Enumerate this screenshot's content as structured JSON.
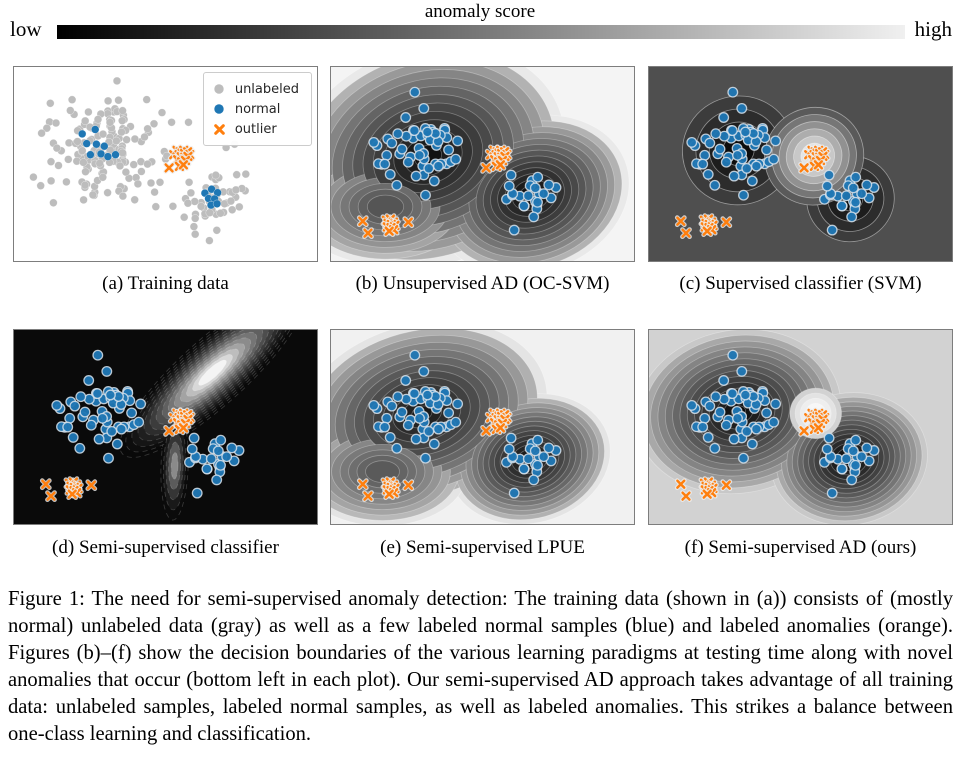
{
  "colorbar": {
    "title": "anomaly score",
    "low_label": "low",
    "high_label": "high",
    "gradient_from": "#000000",
    "gradient_mid": "#787878",
    "gradient_to": "#f0f0f0"
  },
  "legend": {
    "items": [
      {
        "label": "unlabeled",
        "marker": "circle",
        "color": "#bdbdbd"
      },
      {
        "label": "normal",
        "marker": "circle",
        "color": "#1f77b4"
      },
      {
        "label": "outlier",
        "marker": "x",
        "color": "#ff7f0e"
      }
    ]
  },
  "caption": {
    "text": "Figure 1: The need for semi-supervised anomaly detection: The training data (shown in (a)) consists of (mostly normal) unlabeled data (gray) as well as a few labeled normal samples (blue) and labeled anomalies (orange). Figures (b)–(f) show the decision boundaries of the various learning paradigms at testing time along with novel anomalies that occur (bottom left in each plot). Our semi-supervised AD approach takes advantage of all training data: unlabeled samples, labeled normal samples, as well as labeled anomalies. This strikes a balance between one-class learning and classification."
  },
  "chart_data": {
    "type": "scatter",
    "title": "",
    "xlabel": "",
    "ylabel": "",
    "grid": false,
    "marker_colors": {
      "unlabeled": "#bdbdbd",
      "normal": "#1f77b4",
      "outlier": "#ff7f0e"
    },
    "panels": [
      {
        "id": "a",
        "caption": "(a) Training data",
        "field": null,
        "legend": true,
        "show": [
          "unlabeled",
          "normal_a",
          "outlier_train"
        ]
      },
      {
        "id": "b",
        "caption": "(b) Unsupervised AD (OC-SVM)",
        "field": "b",
        "legend": false,
        "show": [
          "normal_bf",
          "outlier_train",
          "novel_anomalies"
        ]
      },
      {
        "id": "c",
        "caption": "(c) Supervised classifier (SVM)",
        "field": "c",
        "legend": false,
        "show": [
          "normal_bf",
          "outlier_train",
          "novel_anomalies"
        ]
      },
      {
        "id": "d",
        "caption": "(d) Semi-supervised classifier",
        "field": "d",
        "legend": false,
        "show": [
          "normal_bf",
          "outlier_train",
          "novel_anomalies"
        ]
      },
      {
        "id": "e",
        "caption": "(e) Semi-supervised LPUE",
        "field": "e",
        "legend": false,
        "show": [
          "normal_bf",
          "outlier_train",
          "novel_anomalies"
        ]
      },
      {
        "id": "f",
        "caption": "(f) Semi-supervised AD (ours)",
        "field": "f",
        "legend": false,
        "show": [
          "normal_bf",
          "outlier_train",
          "novel_anomalies"
        ]
      }
    ],
    "points": {
      "unlabeled_clusters": [
        {
          "cx": 0.295,
          "cy": 0.42,
          "sx": 0.085,
          "sy": 0.125,
          "n": 150,
          "seed": 7
        },
        {
          "cx": 0.665,
          "cy": 0.69,
          "sx": 0.052,
          "sy": 0.068,
          "n": 46,
          "seed": 13
        }
      ],
      "unlabeled_extra": [
        [
          0.52,
          0.285
        ],
        [
          0.576,
          0.285
        ],
        [
          0.7,
          0.415
        ],
        [
          0.728,
          0.398
        ],
        [
          0.735,
          0.555
        ],
        [
          0.765,
          0.552
        ],
        [
          0.645,
          0.895
        ],
        [
          0.598,
          0.862
        ],
        [
          0.468,
          0.72
        ],
        [
          0.452,
          0.598
        ],
        [
          0.13,
          0.7
        ],
        [
          0.088,
          0.612
        ]
      ],
      "normal_a": [
        [
          0.225,
          0.345
        ],
        [
          0.268,
          0.322
        ],
        [
          0.24,
          0.395
        ],
        [
          0.272,
          0.398
        ],
        [
          0.298,
          0.408
        ],
        [
          0.252,
          0.452
        ],
        [
          0.287,
          0.448
        ],
        [
          0.31,
          0.462
        ],
        [
          0.335,
          0.452
        ],
        [
          0.63,
          0.65
        ],
        [
          0.652,
          0.63
        ],
        [
          0.672,
          0.648
        ],
        [
          0.642,
          0.678
        ],
        [
          0.662,
          0.68
        ],
        [
          0.65,
          0.712
        ],
        [
          0.67,
          0.705
        ]
      ],
      "normal_clusters_bf": [
        {
          "cx": 0.3,
          "cy": 0.425,
          "sx": 0.075,
          "sy": 0.105,
          "n": 55,
          "seed": 21
        },
        {
          "cx": 0.66,
          "cy": 0.675,
          "sx": 0.05,
          "sy": 0.062,
          "n": 24,
          "seed": 42
        }
      ],
      "outlier_train": [
        [
          0.527,
          0.452
        ],
        [
          0.538,
          0.43
        ],
        [
          0.549,
          0.437
        ],
        [
          0.545,
          0.452
        ],
        [
          0.555,
          0.444
        ],
        [
          0.56,
          0.43
        ],
        [
          0.563,
          0.446
        ],
        [
          0.573,
          0.437
        ],
        [
          0.58,
          0.452
        ],
        [
          0.552,
          0.463
        ],
        [
          0.563,
          0.466
        ],
        [
          0.574,
          0.461
        ],
        [
          0.54,
          0.478
        ],
        [
          0.553,
          0.489
        ],
        [
          0.566,
          0.482
        ],
        [
          0.512,
          0.52
        ],
        [
          0.546,
          0.512
        ],
        [
          0.559,
          0.504
        ]
      ],
      "novel_anomalies": [
        [
          0.105,
          0.795
        ],
        [
          0.122,
          0.856
        ],
        [
          0.255,
          0.8
        ],
        [
          0.183,
          0.79
        ],
        [
          0.196,
          0.784
        ],
        [
          0.206,
          0.8
        ],
        [
          0.188,
          0.806
        ],
        [
          0.199,
          0.812
        ],
        [
          0.211,
          0.816
        ],
        [
          0.186,
          0.824
        ],
        [
          0.198,
          0.828
        ],
        [
          0.207,
          0.838
        ],
        [
          0.192,
          0.846
        ]
      ]
    },
    "fields": {
      "b": {
        "bg": "#f4f4f4",
        "stroke": "rgba(255,255,255,0.30)",
        "dash": null,
        "gamma": 0.55,
        "blobs": [
          {
            "cx": 0.32,
            "cy": 0.46,
            "rx": 0.46,
            "ry": 0.56,
            "rot": -18,
            "levels": 13,
            "outer": "#e9e9e9",
            "inner": "#121212",
            "shrink": 0.9
          },
          {
            "cx": 0.66,
            "cy": 0.66,
            "rx": 0.33,
            "ry": 0.4,
            "rot": -18,
            "levels": 13,
            "outer": "#e9e9e9",
            "inner": "#121212",
            "shrink": 0.88
          },
          {
            "cx": 0.18,
            "cy": 0.72,
            "rx": 0.3,
            "ry": 0.3,
            "rot": 0,
            "levels": 9,
            "outer": "#e9e9e9",
            "inner": "#555555",
            "shrink": 0.8
          }
        ],
        "blobs_top": []
      },
      "c": {
        "bg": "#4f4f4f",
        "stroke": "rgba(255,255,255,0.45)",
        "dash": null,
        "gamma": 1.0,
        "blobs": [
          {
            "cx": 0.295,
            "cy": 0.43,
            "rx": 0.185,
            "ry": 0.28,
            "rot": -15,
            "levels": 4,
            "outer": "#3c3c3c",
            "inner": "#0d0d0d",
            "shrink": 0.72
          },
          {
            "cx": 0.665,
            "cy": 0.68,
            "rx": 0.145,
            "ry": 0.22,
            "rot": -20,
            "levels": 4,
            "outer": "#3c3c3c",
            "inner": "#0d0d0d",
            "shrink": 0.72
          }
        ],
        "blobs_top": [
          {
            "cx": 0.545,
            "cy": 0.46,
            "rx": 0.165,
            "ry": 0.25,
            "rot": -30,
            "levels": 7,
            "outer": "#5a5a5a",
            "inner": "#ffffff",
            "shrink": 0.88
          }
        ]
      },
      "d": {
        "bg": "#0a0a0a",
        "stroke": "rgba(255,255,255,0.20)",
        "dash": "5 4",
        "gamma": 1.6,
        "blobs": [
          {
            "cx": 0.655,
            "cy": 0.22,
            "rx": 0.4,
            "ry": 0.17,
            "rot": -42,
            "levels": 14,
            "outer": "#090909",
            "inner": "#f4f4f4",
            "shrink": 0.85
          },
          {
            "cx": 0.53,
            "cy": 0.7,
            "rx": 0.045,
            "ry": 0.28,
            "rot": 2,
            "levels": 5,
            "outer": "#0b0b0b",
            "inner": "#8a8a8a",
            "shrink": 0.75
          }
        ],
        "blobs_top": []
      },
      "e": {
        "bg": "#f1f1f1",
        "stroke": "rgba(255,255,255,0.30)",
        "dash": null,
        "gamma": 0.55,
        "blobs": [
          {
            "cx": 0.3,
            "cy": 0.43,
            "rx": 0.42,
            "ry": 0.46,
            "rot": -15,
            "levels": 13,
            "outer": "#e4e4e4",
            "inner": "#181818",
            "shrink": 0.92
          },
          {
            "cx": 0.655,
            "cy": 0.665,
            "rx": 0.27,
            "ry": 0.33,
            "rot": -15,
            "levels": 13,
            "outer": "#e4e4e4",
            "inner": "#1c1c1c",
            "shrink": 0.85
          },
          {
            "cx": 0.17,
            "cy": 0.73,
            "rx": 0.28,
            "ry": 0.28,
            "rot": 0,
            "levels": 9,
            "outer": "#e4e4e4",
            "inner": "#5a5a5a",
            "shrink": 0.8
          }
        ],
        "blobs_top": []
      },
      "f": {
        "bg": "#d2d2d2",
        "stroke": "rgba(255,255,255,0.30)",
        "dash": null,
        "gamma": 0.7,
        "blobs": [
          {
            "cx": 0.295,
            "cy": 0.42,
            "rx": 0.34,
            "ry": 0.42,
            "rot": -10,
            "levels": 14,
            "outer": "#c8c8c8",
            "inner": "#0a0a0a",
            "shrink": 0.93
          },
          {
            "cx": 0.66,
            "cy": 0.665,
            "rx": 0.26,
            "ry": 0.34,
            "rot": -10,
            "levels": 14,
            "outer": "#c8c8c8",
            "inner": "#0a0a0a",
            "shrink": 0.9
          }
        ],
        "blobs_top": [
          {
            "cx": 0.55,
            "cy": 0.43,
            "rx": 0.085,
            "ry": 0.13,
            "rot": 0,
            "levels": 5,
            "outer": "#d2d2d2",
            "inner": "#ffffff",
            "shrink": 0.8
          }
        ]
      }
    }
  }
}
